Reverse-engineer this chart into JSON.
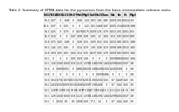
{
  "title": "Table 2: Summary of XPMA data for the pyroxenes from the basic-intermediate volcanic rocks.",
  "columns": [
    "SiO2",
    "TiO2",
    "Al2O3",
    "Cr2O3",
    "FeO*",
    "MnO",
    "MgO",
    "CaO",
    "Na2O",
    "Sum",
    "Wo",
    "En",
    "Fs",
    "Mg#"
  ],
  "rows": [
    [
      "56.2",
      "0.27",
      "0",
      "0.48",
      "0",
      "0.08",
      "1.18",
      "0.03",
      "1.85",
      "0.85",
      "0.009",
      "2.61",
      "0.0024",
      "0.9"
    ],
    [
      "55.6",
      "0.37",
      "0",
      "0.35",
      "0",
      "0",
      "1.22",
      "0.01",
      "1.468",
      "0.47",
      "0.005",
      "2.54",
      "0.0026",
      "0.88"
    ],
    [
      "54.3",
      "0.25",
      "0",
      "0.79",
      "0",
      "0.078",
      "0.575",
      "0.009",
      "1.35",
      "0.79",
      "0.013",
      "2.61",
      "0.001",
      "0.55"
    ],
    [
      "55.3",
      "0.14",
      "0",
      "0",
      "0.47",
      "0.08",
      "0.28",
      "0.05",
      "1.2",
      "0.04",
      "0.12",
      "0.91",
      "0.033",
      "0.89"
    ],
    [
      "52.8",
      "0.75",
      "0.43",
      "0.48",
      "0",
      "0.28",
      "0.15",
      "0.09",
      "0.52",
      "0.16",
      "0.015",
      "0.81",
      "0.015",
      "0.88"
    ],
    [
      "54.5",
      "1.44",
      "1.51",
      "0.45",
      "0",
      "0.14",
      "0.19",
      "1.95",
      "0.28",
      "0.19",
      "0.006",
      "0.86",
      "0.010",
      "0.82"
    ],
    [
      "53.8",
      "0.09",
      "0.05",
      "0.03",
      "0.04",
      "0.14",
      "0.35",
      "0.637",
      "0.06",
      "0.78",
      "0.009",
      "0.83",
      "0.003",
      "0.82"
    ],
    [
      "53.1",
      "0",
      "0",
      "0",
      "0.05",
      "0.09",
      "1.06",
      "0",
      "0",
      "0",
      "0.009",
      "0.866",
      "0.002",
      "0.84"
    ],
    [
      "52.1",
      "1.28",
      "1.040",
      "0.043",
      "0.16",
      "1.121",
      "1.374",
      "11.148",
      "1.394",
      "1.442",
      "0.299",
      "0.402",
      "2.027",
      "0.8"
    ],
    [
      "52.4",
      "0",
      "0.689",
      "0.001",
      "0",
      "0.881",
      "0.820",
      "11.006",
      "0.208",
      "0.394",
      "0.245",
      "0.380",
      "0",
      "0.8"
    ],
    [
      "52.8",
      "0",
      "0",
      "0",
      "0",
      "0",
      "0",
      "0",
      "0.009",
      "0.486",
      "0",
      "0",
      "0",
      "0.8"
    ],
    [
      "53.6",
      "0.54",
      "0.734",
      "0.074",
      "0.513",
      "1.747",
      "0.201",
      "11.063",
      "1.504",
      "0.16",
      "0.7",
      "0.449",
      "0.43",
      "0.5"
    ],
    [
      "54.1",
      "1.422",
      "0.502",
      "0.009",
      "0.516",
      "1.894",
      "0.209",
      "17.206",
      "1.408",
      "0",
      "0.7",
      "0.44",
      "0.43",
      "0.5"
    ],
    [
      "53.1",
      "1.28",
      "50.105",
      "50.102",
      "78.9",
      "81.817",
      "97.101",
      "127.17",
      "130.82",
      "211.5",
      "213.2",
      "214.1",
      "81.51",
      "900"
    ],
    [
      "52.1",
      "1.28",
      "1.040",
      "0.043",
      "0.16",
      "1.121",
      "1.374",
      "11.148",
      "1.394",
      "1.442",
      "0.299",
      "0.402",
      "2.027",
      "0.8"
    ],
    [
      "53.1",
      "1",
      "0.502",
      "0.5",
      "0.5",
      "1.894",
      "0.20",
      "17.1",
      "1.4",
      "0",
      "0.7",
      "0.44",
      "0.43",
      "0.5"
    ]
  ],
  "title_fontsize": 3.2,
  "header_fontsize": 2.5,
  "cell_fontsize": 2.2,
  "bg_color": "#ffffff",
  "header_bg": "#e8e8e8",
  "line_color": "#999999"
}
